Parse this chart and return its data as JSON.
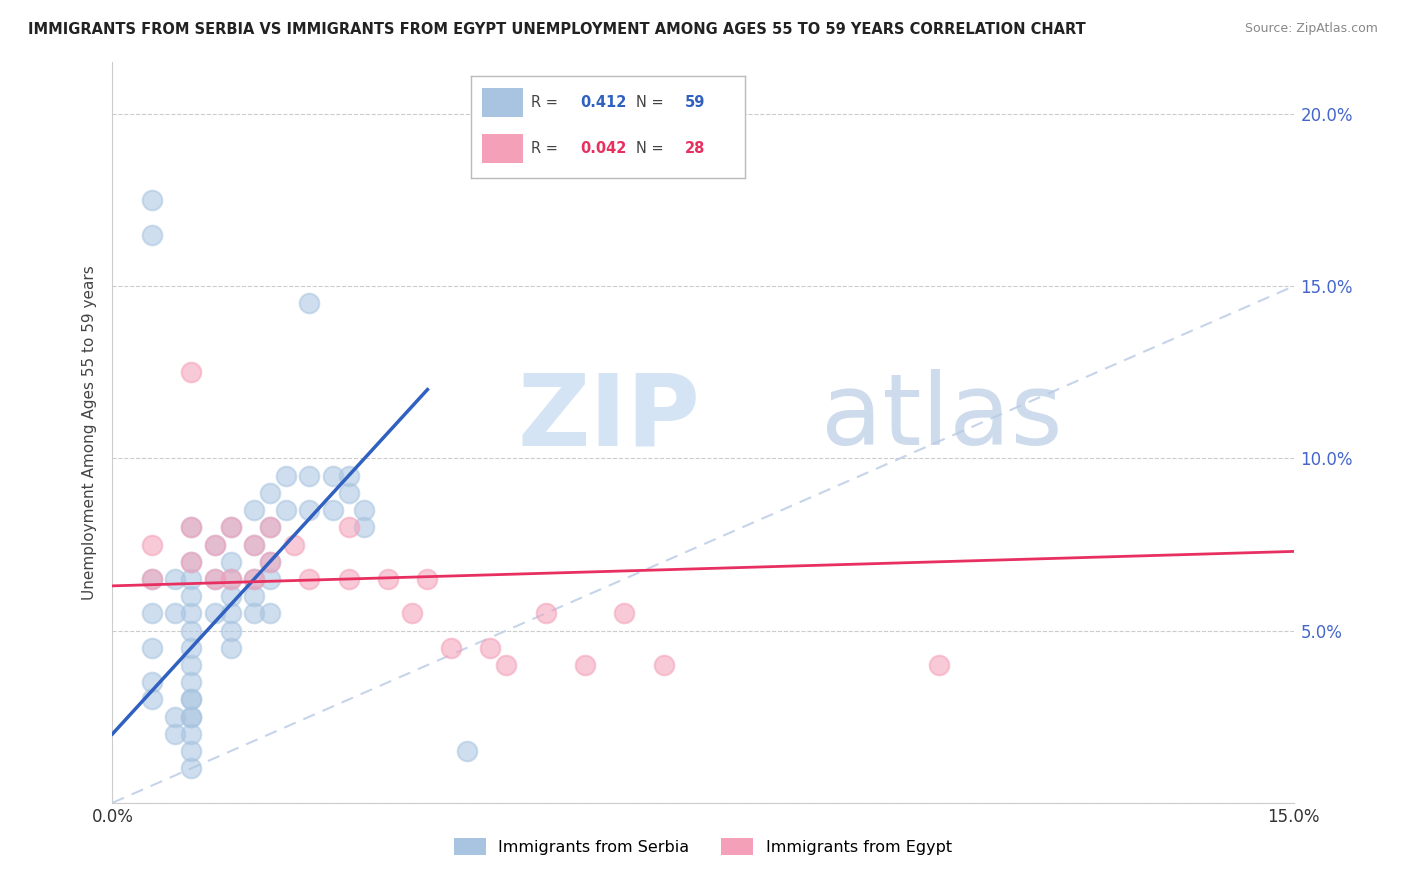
{
  "title": "IMMIGRANTS FROM SERBIA VS IMMIGRANTS FROM EGYPT UNEMPLOYMENT AMONG AGES 55 TO 59 YEARS CORRELATION CHART",
  "source": "Source: ZipAtlas.com",
  "ylabel": "Unemployment Among Ages 55 to 59 years",
  "xlim": [
    0.0,
    0.15
  ],
  "ylim": [
    0.0,
    0.215
  ],
  "serbia_R": "0.412",
  "serbia_N": "59",
  "egypt_R": "0.042",
  "egypt_N": "28",
  "serbia_color": "#a8c4e0",
  "egypt_color": "#f4a0b8",
  "serbia_line_color": "#3060c0",
  "egypt_line_color": "#e83060",
  "diag_line_color": "#c0d0e8",
  "legend_serbia": "Immigrants from Serbia",
  "legend_egypt": "Immigrants from Egypt",
  "serbia_x": [
    0.005,
    0.005,
    0.005,
    0.005,
    0.008,
    0.008,
    0.01,
    0.01,
    0.01,
    0.01,
    0.01,
    0.01,
    0.01,
    0.01,
    0.01,
    0.01,
    0.01,
    0.01,
    0.01,
    0.01,
    0.013,
    0.013,
    0.013,
    0.015,
    0.015,
    0.015,
    0.015,
    0.015,
    0.015,
    0.015,
    0.018,
    0.018,
    0.018,
    0.018,
    0.018,
    0.02,
    0.02,
    0.02,
    0.02,
    0.02,
    0.022,
    0.022,
    0.025,
    0.025,
    0.028,
    0.028,
    0.03,
    0.03,
    0.032,
    0.032,
    0.005,
    0.005,
    0.005,
    0.008,
    0.008,
    0.01,
    0.01,
    0.045,
    0.025
  ],
  "serbia_y": [
    0.065,
    0.055,
    0.045,
    0.035,
    0.065,
    0.055,
    0.08,
    0.07,
    0.065,
    0.06,
    0.055,
    0.05,
    0.045,
    0.04,
    0.035,
    0.03,
    0.025,
    0.02,
    0.015,
    0.01,
    0.075,
    0.065,
    0.055,
    0.08,
    0.07,
    0.065,
    0.06,
    0.055,
    0.05,
    0.045,
    0.085,
    0.075,
    0.065,
    0.06,
    0.055,
    0.09,
    0.08,
    0.07,
    0.065,
    0.055,
    0.095,
    0.085,
    0.095,
    0.085,
    0.095,
    0.085,
    0.095,
    0.09,
    0.085,
    0.08,
    0.175,
    0.165,
    0.03,
    0.025,
    0.02,
    0.03,
    0.025,
    0.015,
    0.145
  ],
  "egypt_x": [
    0.005,
    0.005,
    0.01,
    0.01,
    0.013,
    0.013,
    0.015,
    0.015,
    0.018,
    0.018,
    0.02,
    0.02,
    0.023,
    0.025,
    0.03,
    0.03,
    0.035,
    0.038,
    0.04,
    0.043,
    0.048,
    0.05,
    0.055,
    0.06,
    0.065,
    0.07,
    0.105,
    0.01
  ],
  "egypt_y": [
    0.075,
    0.065,
    0.08,
    0.07,
    0.075,
    0.065,
    0.08,
    0.065,
    0.075,
    0.065,
    0.08,
    0.07,
    0.075,
    0.065,
    0.08,
    0.065,
    0.065,
    0.055,
    0.065,
    0.045,
    0.045,
    0.04,
    0.055,
    0.04,
    0.055,
    0.04,
    0.04,
    0.125
  ],
  "serbia_line_x": [
    0.0,
    0.04
  ],
  "serbia_line_y": [
    0.02,
    0.12
  ],
  "egypt_line_x": [
    0.0,
    0.15
  ],
  "egypt_line_y": [
    0.063,
    0.073
  ]
}
